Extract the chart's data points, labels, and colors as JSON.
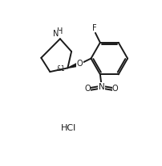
{
  "bg_color": "#ffffff",
  "line_color": "#1a1a1a",
  "line_width": 1.4,
  "font_size_label": 7.0,
  "font_size_hcl": 8.0,
  "font_size_stereo": 5.5,
  "label_F": "F",
  "label_NH": "HN",
  "label_O": "O",
  "label_N": "N",
  "label_O1": "O",
  "label_O2": "O",
  "label_stereo": "&1",
  "label_hcl": "HCl",
  "figsize": [
    2.03,
    2.06
  ],
  "dpi": 100,
  "xlim": [
    0,
    10
  ],
  "ylim": [
    0,
    10
  ]
}
